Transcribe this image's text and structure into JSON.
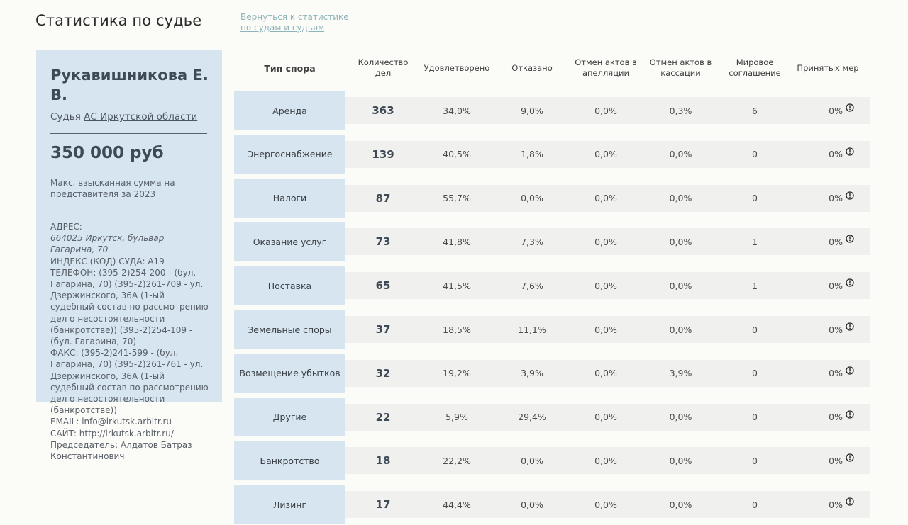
{
  "page_title": "Статистика по судье",
  "back_link": "Вернуться к статистике по судам и судьям",
  "judge": {
    "name": "Рукавишникова Е. В.",
    "court_prefix": "Судья",
    "court_name": "АС Иркутской области",
    "amount": "350 000 руб",
    "amount_caption": "Макс. взысканная сумма на представителя за 2023"
  },
  "contacts": {
    "address_label": "АДРЕС:",
    "address_value": "664025 Иркутск, бульвар Гагарина, 70",
    "index": "ИНДЕКС (КОД) СУДА: А19",
    "phone": "ТЕЛЕФОН: (395-2)254-200 - (бул. Гагарина, 70) (395-2)261-709 - ул. Дзержинского, 36А (1-ый судебный состав по рассмотрению дел о несостоятельности (банкротстве)) (395-2)254-109 - (бул. Гагарина, 70)",
    "fax": "ФАКС: (395-2)241-599 - (бул. Гагарина, 70) (395-2)261-761 - ул. Дзержинского, 36А (1-ый судебный состав по рассмотрению дел о несостоятельности (банкротстве))",
    "email": "EMAIL: info@irkutsk.arbitr.ru",
    "site": "САЙТ: http://irkutsk.arbitr.ru/",
    "chairman": "Председатель: Алдатов Батраз Константинович"
  },
  "table": {
    "headers": {
      "type": "Тип спора",
      "count": "Количество дел",
      "satisfied": "Удовлетворено",
      "refused": "Отказано",
      "appeal": "Отмен актов в апелляции",
      "cassation": "Отмен актов в кассации",
      "settlement": "Мировое соглашение",
      "measures": "Принятых мер"
    },
    "icon": "info-circle-icon",
    "rows": [
      {
        "type": "Аренда",
        "count": "363",
        "satisfied": "34,0%",
        "refused": "9,0%",
        "appeal": "0,0%",
        "cassation": "0,3%",
        "settlement": "6",
        "measures": "0%"
      },
      {
        "type": "Энергоснабжение",
        "count": "139",
        "satisfied": "40,5%",
        "refused": "1,8%",
        "appeal": "0,0%",
        "cassation": "0,0%",
        "settlement": "0",
        "measures": "0%"
      },
      {
        "type": "Налоги",
        "count": "87",
        "satisfied": "55,7%",
        "refused": "0,0%",
        "appeal": "0,0%",
        "cassation": "0,0%",
        "settlement": "0",
        "measures": "0%"
      },
      {
        "type": "Оказание услуг",
        "count": "73",
        "satisfied": "41,8%",
        "refused": "7,3%",
        "appeal": "0,0%",
        "cassation": "0,0%",
        "settlement": "1",
        "measures": "0%"
      },
      {
        "type": "Поставка",
        "count": "65",
        "satisfied": "41,5%",
        "refused": "7,6%",
        "appeal": "0,0%",
        "cassation": "0,0%",
        "settlement": "1",
        "measures": "0%"
      },
      {
        "type": "Земельные споры",
        "count": "37",
        "satisfied": "18,5%",
        "refused": "11,1%",
        "appeal": "0,0%",
        "cassation": "0,0%",
        "settlement": "0",
        "measures": "0%"
      },
      {
        "type": "Возмещение убытков",
        "count": "32",
        "satisfied": "19,2%",
        "refused": "3,9%",
        "appeal": "0,0%",
        "cassation": "3,9%",
        "settlement": "0",
        "measures": "0%"
      },
      {
        "type": "Другие",
        "count": "22",
        "satisfied": "5,9%",
        "refused": "29,4%",
        "appeal": "0,0%",
        "cassation": "0,0%",
        "settlement": "0",
        "measures": "0%"
      },
      {
        "type": "Банкротство",
        "count": "18",
        "satisfied": "22,2%",
        "refused": "0,0%",
        "appeal": "0,0%",
        "cassation": "0,0%",
        "settlement": "0",
        "measures": "0%"
      },
      {
        "type": "Лизинг",
        "count": "17",
        "satisfied": "44,4%",
        "refused": "0,0%",
        "appeal": "0,0%",
        "cassation": "0,0%",
        "settlement": "0",
        "measures": "0%"
      }
    ]
  }
}
